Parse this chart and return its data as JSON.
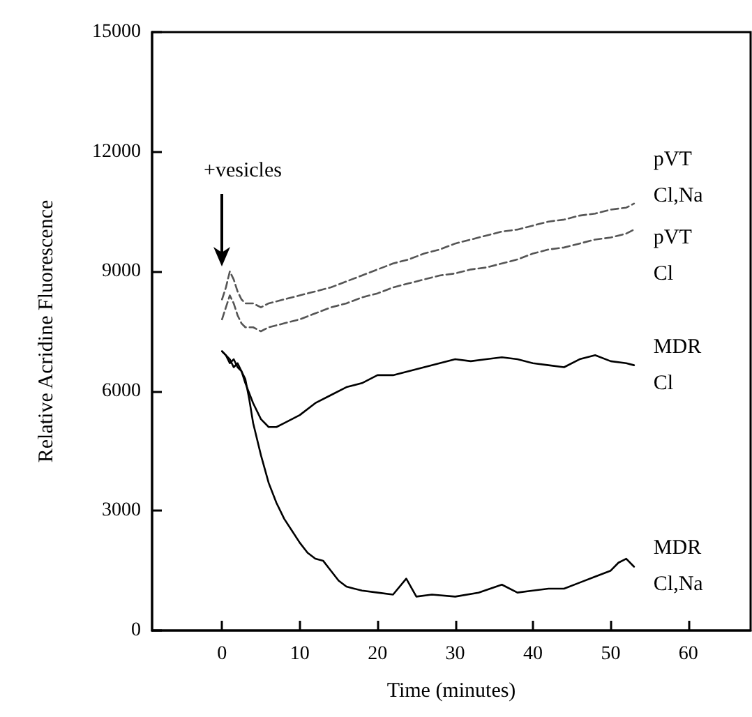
{
  "chart_data": {
    "type": "line",
    "xlabel": "Time (minutes)",
    "ylabel": "Relative Acridine Fluorescence",
    "xlim": [
      -9,
      68
    ],
    "xticks": [
      0,
      10,
      20,
      30,
      40,
      50,
      60
    ],
    "ylim": [
      0,
      15000
    ],
    "yticks": [
      0,
      3000,
      6000,
      9000,
      12000,
      15000
    ],
    "grid": false,
    "legend": false,
    "marker": "none",
    "annotations": [
      "+vesicles"
    ],
    "series": [
      {
        "name": "pVT Cl,Na",
        "color": "#555555",
        "line_style": "dashed",
        "x": [
          0,
          0.5,
          1,
          1.5,
          2,
          2.5,
          3,
          4,
          5,
          6,
          8,
          10,
          12,
          14,
          16,
          18,
          20,
          22,
          24,
          26,
          28,
          30,
          32,
          34,
          36,
          38,
          40,
          42,
          44,
          46,
          48,
          50,
          52,
          53
        ],
        "values": [
          8300,
          8600,
          9000,
          8800,
          8500,
          8300,
          8200,
          8200,
          8100,
          8200,
          8300,
          8400,
          8500,
          8600,
          8750,
          8900,
          9050,
          9200,
          9300,
          9450,
          9550,
          9700,
          9800,
          9900,
          10000,
          10050,
          10150,
          10250,
          10300,
          10400,
          10450,
          10550,
          10600,
          10700
        ]
      },
      {
        "name": "pVT Cl",
        "color": "#555555",
        "line_style": "dashed",
        "x": [
          0,
          0.5,
          1,
          1.5,
          2,
          2.5,
          3,
          4,
          5,
          6,
          8,
          10,
          12,
          14,
          16,
          18,
          20,
          22,
          24,
          26,
          28,
          30,
          32,
          34,
          36,
          38,
          40,
          42,
          44,
          46,
          48,
          50,
          52,
          53
        ],
        "values": [
          7800,
          8100,
          8400,
          8200,
          7900,
          7700,
          7600,
          7600,
          7500,
          7600,
          7700,
          7800,
          7950,
          8100,
          8200,
          8350,
          8450,
          8600,
          8700,
          8800,
          8900,
          8950,
          9050,
          9100,
          9200,
          9300,
          9450,
          9550,
          9600,
          9700,
          9800,
          9850,
          9950,
          10050
        ]
      },
      {
        "name": "MDR Cl",
        "color": "#000000",
        "line_style": "solid",
        "x": [
          0,
          0.5,
          1,
          1.5,
          2,
          2.5,
          3,
          4,
          5,
          6,
          7,
          8,
          10,
          12,
          14,
          16,
          18,
          20,
          22,
          24,
          26,
          28,
          30,
          32,
          34,
          36,
          38,
          40,
          42,
          44,
          46,
          48,
          50,
          52,
          53
        ],
        "values": [
          7000,
          6900,
          6800,
          6600,
          6700,
          6500,
          6200,
          5700,
          5300,
          5100,
          5100,
          5200,
          5400,
          5700,
          5900,
          6100,
          6200,
          6400,
          6400,
          6500,
          6600,
          6700,
          6800,
          6750,
          6800,
          6850,
          6800,
          6700,
          6650,
          6600,
          6800,
          6900,
          6750,
          6700,
          6650
        ]
      },
      {
        "name": "MDR Cl,Na",
        "color": "#000000",
        "line_style": "solid",
        "x": [
          0,
          0.5,
          1,
          1.5,
          2,
          2.5,
          3,
          3.5,
          4,
          5,
          6,
          7,
          8,
          9,
          10,
          11,
          12,
          13,
          14,
          15,
          16,
          17,
          18,
          20,
          22,
          23.7,
          25,
          27,
          30,
          33,
          36,
          38,
          40,
          42,
          44,
          46,
          48,
          50,
          51,
          52,
          53
        ],
        "values": [
          7000,
          6900,
          6700,
          6800,
          6600,
          6500,
          6300,
          5800,
          5200,
          4400,
          3700,
          3200,
          2800,
          2500,
          2200,
          1950,
          1800,
          1750,
          1500,
          1250,
          1100,
          1050,
          1000,
          950,
          900,
          1300,
          850,
          900,
          850,
          950,
          1150,
          950,
          1000,
          1050,
          1050,
          1200,
          1350,
          1500,
          1700,
          1800,
          1600
        ]
      }
    ]
  }
}
